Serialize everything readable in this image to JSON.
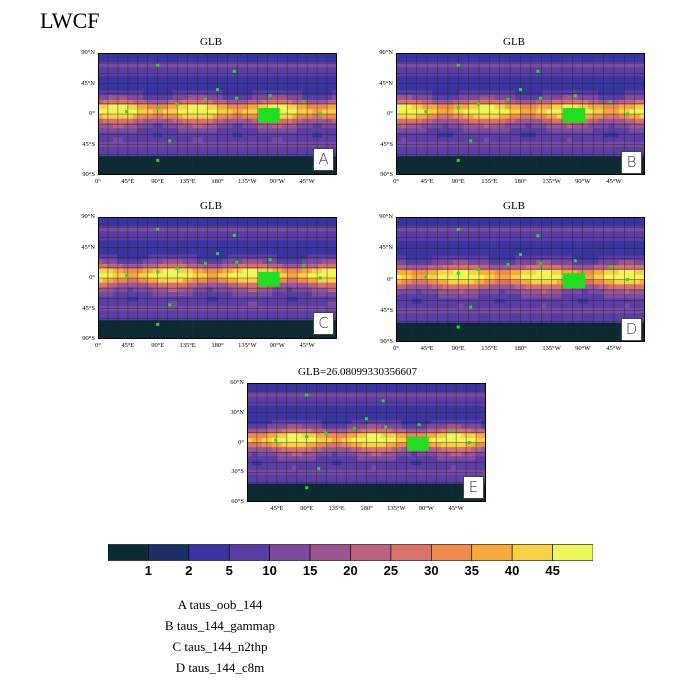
{
  "figure_title": "LWCF",
  "panels": [
    {
      "id": "A",
      "title": "GLB",
      "letter": "A"
    },
    {
      "id": "B",
      "title": "GLB",
      "letter": "B"
    },
    {
      "id": "C",
      "title": "GLB",
      "letter": "C"
    },
    {
      "id": "D",
      "title": "GLB",
      "letter": "D"
    },
    {
      "id": "E",
      "title": "GLB=26.08099330356607",
      "letter": "E"
    }
  ],
  "lat_labels_full": [
    "90°N",
    "45°N",
    "0°",
    "45°S",
    "90°S"
  ],
  "lon_labels_full": [
    "0°",
    "45°E",
    "90°E",
    "135°E",
    "180°",
    "135°W",
    "90°W",
    "45°W"
  ],
  "lat_labels_e": [
    "60°N",
    "30°N",
    "0°",
    "30°S",
    "60°S"
  ],
  "lon_labels_e": [
    "45°E",
    "90°E",
    "135°E",
    "180°",
    "135°W",
    "90°W",
    "45°W"
  ],
  "colorbar": {
    "labels": [
      "1",
      "2",
      "5",
      "10",
      "15",
      "20",
      "25",
      "30",
      "35",
      "40",
      "45"
    ],
    "colors": [
      "#0c2a33",
      "#1b3068",
      "#3a34a0",
      "#5a3ea6",
      "#7c4a9e",
      "#9c5690",
      "#bb6280",
      "#d9716c",
      "#f08a4c",
      "#f7aa3c",
      "#f6d244",
      "#eef659"
    ]
  },
  "legend": [
    "A  taus_oob_144",
    "B  taus_144_gammap",
    "C  taus_144_n2thp",
    "D  taus_144_c8m"
  ]
}
